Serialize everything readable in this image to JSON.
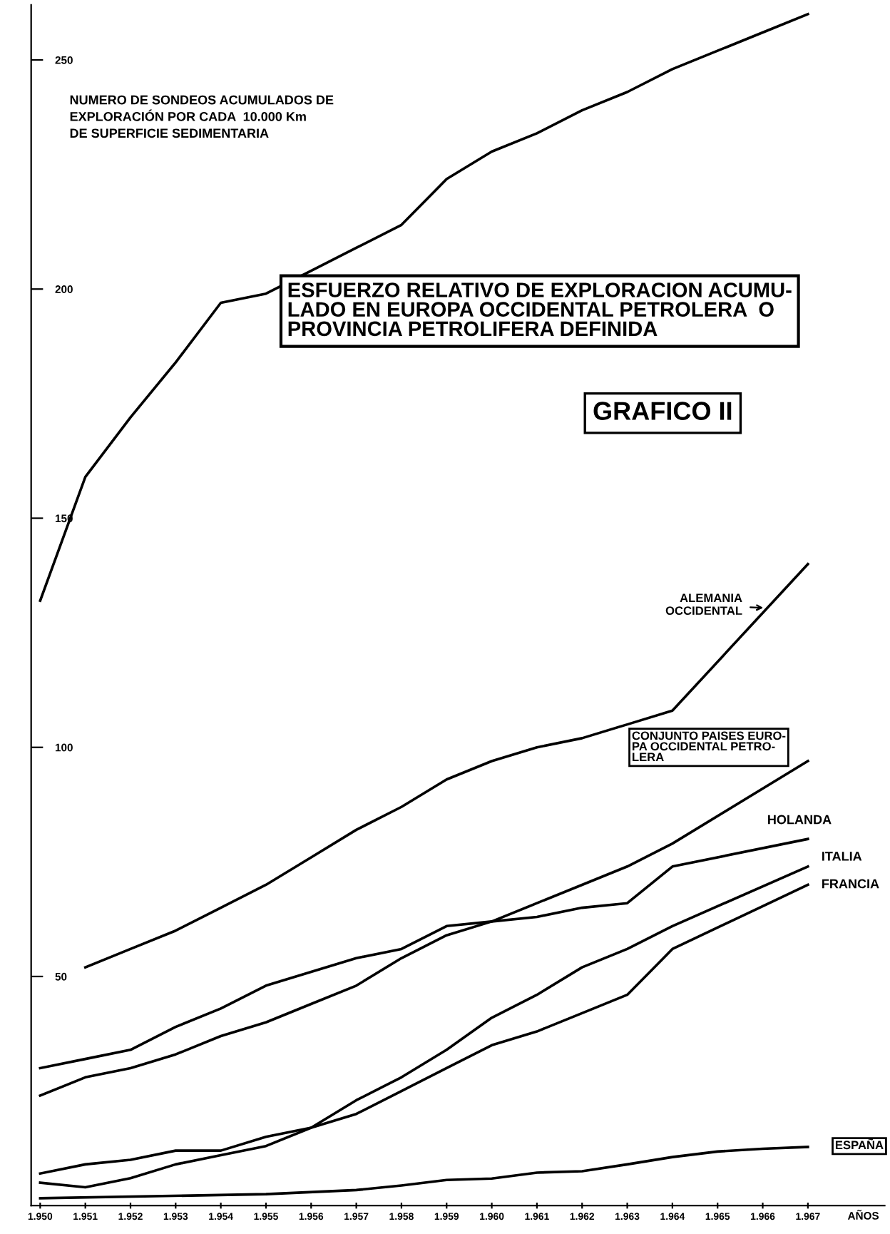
{
  "chart_data": {
    "type": "line",
    "title": "ESFUERZO RELATIVO DE EXPLORACION ACUMU-\nLADO EN EUROPA OCCIDENTAL PETROLERA  O\nPROVINCIA PETROLIFERA DEFINIDA",
    "subtitle": "GRAFICO II",
    "ylabel": "NUMERO DE SONDEOS ACUMULADOS DE\nEXPLORACIÓN POR CADA  10.000 Km\nDE SUPERFICIE SEDIMENTARIA",
    "xlabel": "AÑOS",
    "xlim": [
      1949.8,
      1968.7
    ],
    "ylim": [
      0,
      262
    ],
    "xticks": [
      {
        "value": 1950,
        "label": "1.950"
      },
      {
        "value": 1951,
        "label": "1.951"
      },
      {
        "value": 1952,
        "label": "1.952"
      },
      {
        "value": 1953,
        "label": "1.953"
      },
      {
        "value": 1954,
        "label": "1.954"
      },
      {
        "value": 1955,
        "label": "1.955"
      },
      {
        "value": 1956,
        "label": "1.956"
      },
      {
        "value": 1957,
        "label": "1.957"
      },
      {
        "value": 1958,
        "label": "1.958"
      },
      {
        "value": 1959,
        "label": "1.959"
      },
      {
        "value": 1960,
        "label": "1.960"
      },
      {
        "value": 1961,
        "label": "1.961"
      },
      {
        "value": 1962,
        "label": "1.962"
      },
      {
        "value": 1963,
        "label": "1.963"
      },
      {
        "value": 1964,
        "label": "1.964"
      },
      {
        "value": 1965,
        "label": "1.965"
      },
      {
        "value": 1966,
        "label": "1.966"
      },
      {
        "value": 1967,
        "label": "1.967"
      }
    ],
    "yticks": [
      50,
      100,
      150,
      200,
      250
    ],
    "grid": false,
    "marker": "none",
    "line_style": "solid",
    "series": [
      {
        "color": "#000000",
        "x": [
          1950,
          1951,
          1952,
          1953,
          1954,
          1955,
          1956,
          1957,
          1958,
          1959,
          1960,
          1961,
          1962,
          1963,
          1964,
          1965,
          1966,
          1967
        ],
        "values": [
          132,
          159,
          172,
          184,
          197,
          199,
          204,
          209,
          214,
          224,
          230,
          234,
          239,
          243,
          248,
          252,
          256,
          260
        ]
      },
      {
        "name": "ALEMANIA\nOCCIDENTAL",
        "color": "#000000",
        "x": [
          1951,
          1952,
          1953,
          1954,
          1955,
          1956,
          1957,
          1958,
          1959,
          1960,
          1961,
          1962,
          1963,
          1964,
          1967
        ],
        "values": [
          52,
          56,
          60,
          65,
          70,
          76,
          82,
          87,
          93,
          97,
          100,
          102,
          105,
          108,
          140
        ]
      },
      {
        "name": "CONJUNTO PAISES EURO-\nPA OCCIDENTAL PETRO-\nLERA",
        "color": "#000000",
        "x": [
          1950,
          1951,
          1952,
          1953,
          1954,
          1955,
          1956,
          1957,
          1958,
          1959,
          1960,
          1961,
          1962,
          1963,
          1964,
          1967
        ],
        "values": [
          24,
          28,
          30,
          33,
          37,
          40,
          44,
          48,
          54,
          59,
          62,
          66,
          70,
          74,
          79,
          97
        ]
      },
      {
        "name": "HOLANDA",
        "color": "#000000",
        "x": [
          1950,
          1951,
          1952,
          1953,
          1954,
          1955,
          1956,
          1957,
          1958,
          1959,
          1960,
          1961,
          1962,
          1963,
          1964,
          1967
        ],
        "values": [
          30,
          32,
          34,
          39,
          43,
          48,
          51,
          54,
          56,
          61,
          62,
          63,
          65,
          66,
          74,
          80
        ]
      },
      {
        "name": "ITALIA",
        "color": "#000000",
        "x": [
          1950,
          1951,
          1952,
          1953,
          1954,
          1955,
          1956,
          1957,
          1958,
          1959,
          1960,
          1961,
          1962,
          1963,
          1964,
          1967
        ],
        "values": [
          5,
          4,
          6,
          9,
          11,
          13,
          17,
          23,
          28,
          34,
          41,
          46,
          52,
          56,
          61,
          74
        ]
      },
      {
        "name": "FRANCIA",
        "color": "#000000",
        "x": [
          1950,
          1951,
          1952,
          1953,
          1954,
          1955,
          1956,
          1957,
          1958,
          1959,
          1960,
          1961,
          1962,
          1963,
          1964,
          1967
        ],
        "values": [
          7,
          9,
          10,
          12,
          12,
          15,
          17,
          20,
          25,
          30,
          35,
          38,
          42,
          46,
          56,
          70
        ]
      },
      {
        "name": "ESPAÑA",
        "color": "#000000",
        "x": [
          1950,
          1955,
          1957,
          1958,
          1959,
          1960,
          1961,
          1962,
          1963,
          1964,
          1965,
          1966,
          1967
        ],
        "values": [
          1.6,
          2.5,
          3.4,
          4.4,
          5.6,
          5.9,
          7.2,
          7.5,
          9,
          10.6,
          11.8,
          12.4,
          12.8
        ]
      }
    ]
  }
}
